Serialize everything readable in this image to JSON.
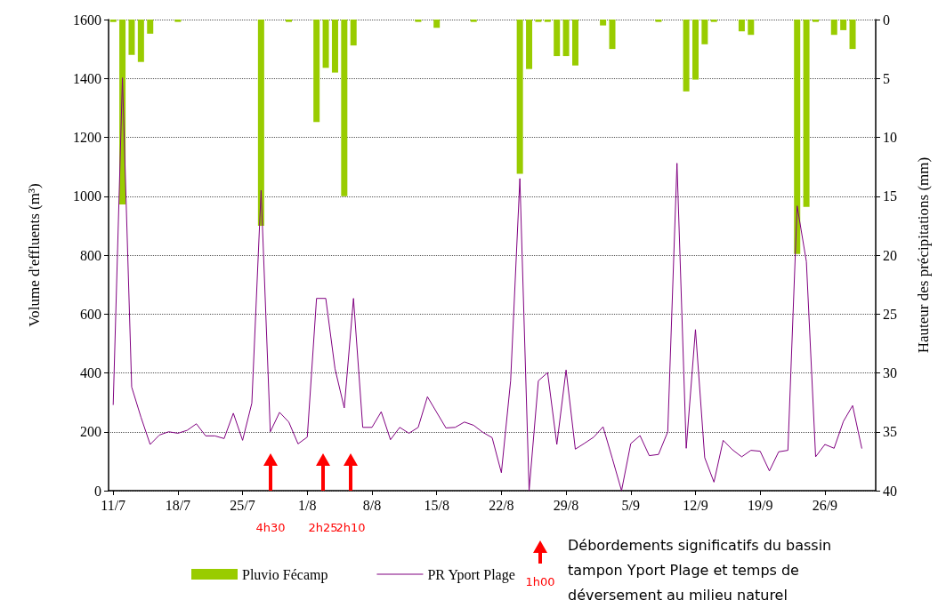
{
  "chart_data": {
    "type": "line",
    "ylabel": "Volume d'effluents (m³)",
    "y2label": "Hauteur des précipitations (mm)",
    "x": [
      "--07-11",
      "--07-12",
      "--07-13",
      "--07-14",
      "--07-15",
      "--07-16",
      "--07-17",
      "--07-18",
      "--07-19",
      "--07-20",
      "--07-21",
      "--07-22",
      "--07-23",
      "--07-24",
      "--07-25",
      "--07-26",
      "--07-27",
      "--07-28",
      "--07-29",
      "--07-30",
      "--07-31",
      "--08-01",
      "--08-02",
      "--08-03",
      "--08-04",
      "--08-05",
      "--08-06",
      "--08-07",
      "--08-08",
      "--08-09",
      "--08-10",
      "--08-11",
      "--08-12",
      "--08-13",
      "--08-14",
      "--08-15",
      "--08-16",
      "--08-17",
      "--08-18",
      "--08-19",
      "--08-20",
      "--08-21",
      "--08-22",
      "--08-23",
      "--08-24",
      "--08-25",
      "--08-26",
      "--08-27",
      "--08-28",
      "--08-29",
      "--08-30",
      "--08-31",
      "--09-01",
      "--09-02",
      "--09-03",
      "--09-04",
      "--09-05",
      "--09-06",
      "--09-07",
      "--09-08",
      "--09-09",
      "--09-10",
      "--09-11",
      "--09-12",
      "--09-13",
      "--09-14",
      "--09-15",
      "--09-16",
      "--09-17",
      "--09-18",
      "--09-19",
      "--09-20",
      "--09-21",
      "--09-22",
      "--09-23",
      "--09-24",
      "--09-25",
      "--09-26",
      "--09-27",
      "--09-28",
      "--09-29",
      "--09-30"
    ],
    "series": [
      {
        "name": "Pluvio Fécamp",
        "type": "bar",
        "axis": "y2",
        "color": "#99cc00",
        "values": [
          0.2,
          15.7,
          3.0,
          3.6,
          1.2,
          null,
          null,
          0.2,
          null,
          null,
          null,
          null,
          null,
          null,
          null,
          null,
          17.5,
          null,
          null,
          0.2,
          null,
          null,
          8.7,
          4.1,
          4.5,
          15.0,
          2.2,
          null,
          null,
          null,
          null,
          null,
          null,
          0.2,
          null,
          0.7,
          null,
          null,
          null,
          0.2,
          null,
          null,
          null,
          null,
          13.1,
          4.2,
          0.2,
          0.2,
          3.1,
          3.1,
          3.9,
          null,
          null,
          0.5,
          2.5,
          null,
          null,
          null,
          null,
          0.2,
          null,
          null,
          6.1,
          5.1,
          2.1,
          0.2,
          null,
          null,
          1.0,
          1.3,
          null,
          null,
          null,
          null,
          19.9,
          15.9,
          0.2,
          null,
          1.3,
          0.9,
          2.5,
          null
        ]
      },
      {
        "name": "PR Yport Plage",
        "color": "#800080",
        "values": [
          291,
          1402,
          352,
          250,
          157,
          189,
          200,
          195,
          205,
          227,
          186,
          186,
          177,
          263,
          171,
          297,
          1020,
          200,
          266,
          233,
          159,
          182,
          653,
          653,
          414,
          281,
          653,
          215,
          215,
          268,
          173,
          215,
          195,
          215,
          319,
          266,
          213,
          215,
          233,
          222,
          198,
          180,
          61,
          373,
          1060,
          0,
          373,
          401,
          157,
          410,
          141,
          161,
          182,
          217,
          110,
          0,
          160,
          187,
          119,
          123,
          200,
          1112,
          144,
          547,
          112,
          29,
          171,
          139,
          115,
          137,
          134,
          67,
          132,
          137,
          967,
          778,
          115,
          157,
          144,
          235,
          289,
          143
        ]
      }
    ],
    "xlim": [
      "--07-10T12:00",
      "--10-01T12:00"
    ],
    "xticks": [
      {
        "value": "--07-11",
        "label": "11/7"
      },
      {
        "value": "--07-18",
        "label": "18/7"
      },
      {
        "value": "--07-25",
        "label": "25/7"
      },
      {
        "value": "--08-01",
        "label": "1/8"
      },
      {
        "value": "--08-08",
        "label": "8/8"
      },
      {
        "value": "--08-15",
        "label": "15/8"
      },
      {
        "value": "--08-22",
        "label": "22/8"
      },
      {
        "value": "--08-29",
        "label": "29/8"
      },
      {
        "value": "--09-05",
        "label": "5/9"
      },
      {
        "value": "--09-12",
        "label": "12/9"
      },
      {
        "value": "--09-19",
        "label": "19/9"
      },
      {
        "value": "--09-26",
        "label": "26/9"
      }
    ],
    "ylim": [
      0,
      1600
    ],
    "yticks": [
      0,
      200,
      400,
      600,
      800,
      1000,
      1200,
      1400,
      1600
    ],
    "y2lim": [
      40,
      0
    ],
    "y2ticks": [
      0,
      5,
      10,
      15,
      20,
      25,
      30,
      35,
      40
    ],
    "grid": "y",
    "legend": "bottom",
    "annotations": [
      "4h30",
      "2h25",
      "2h10",
      "1h00",
      "Débordements significatifs du bassin tampon Yport Plage et temps de déversement au milieu naturel"
    ]
  }
}
